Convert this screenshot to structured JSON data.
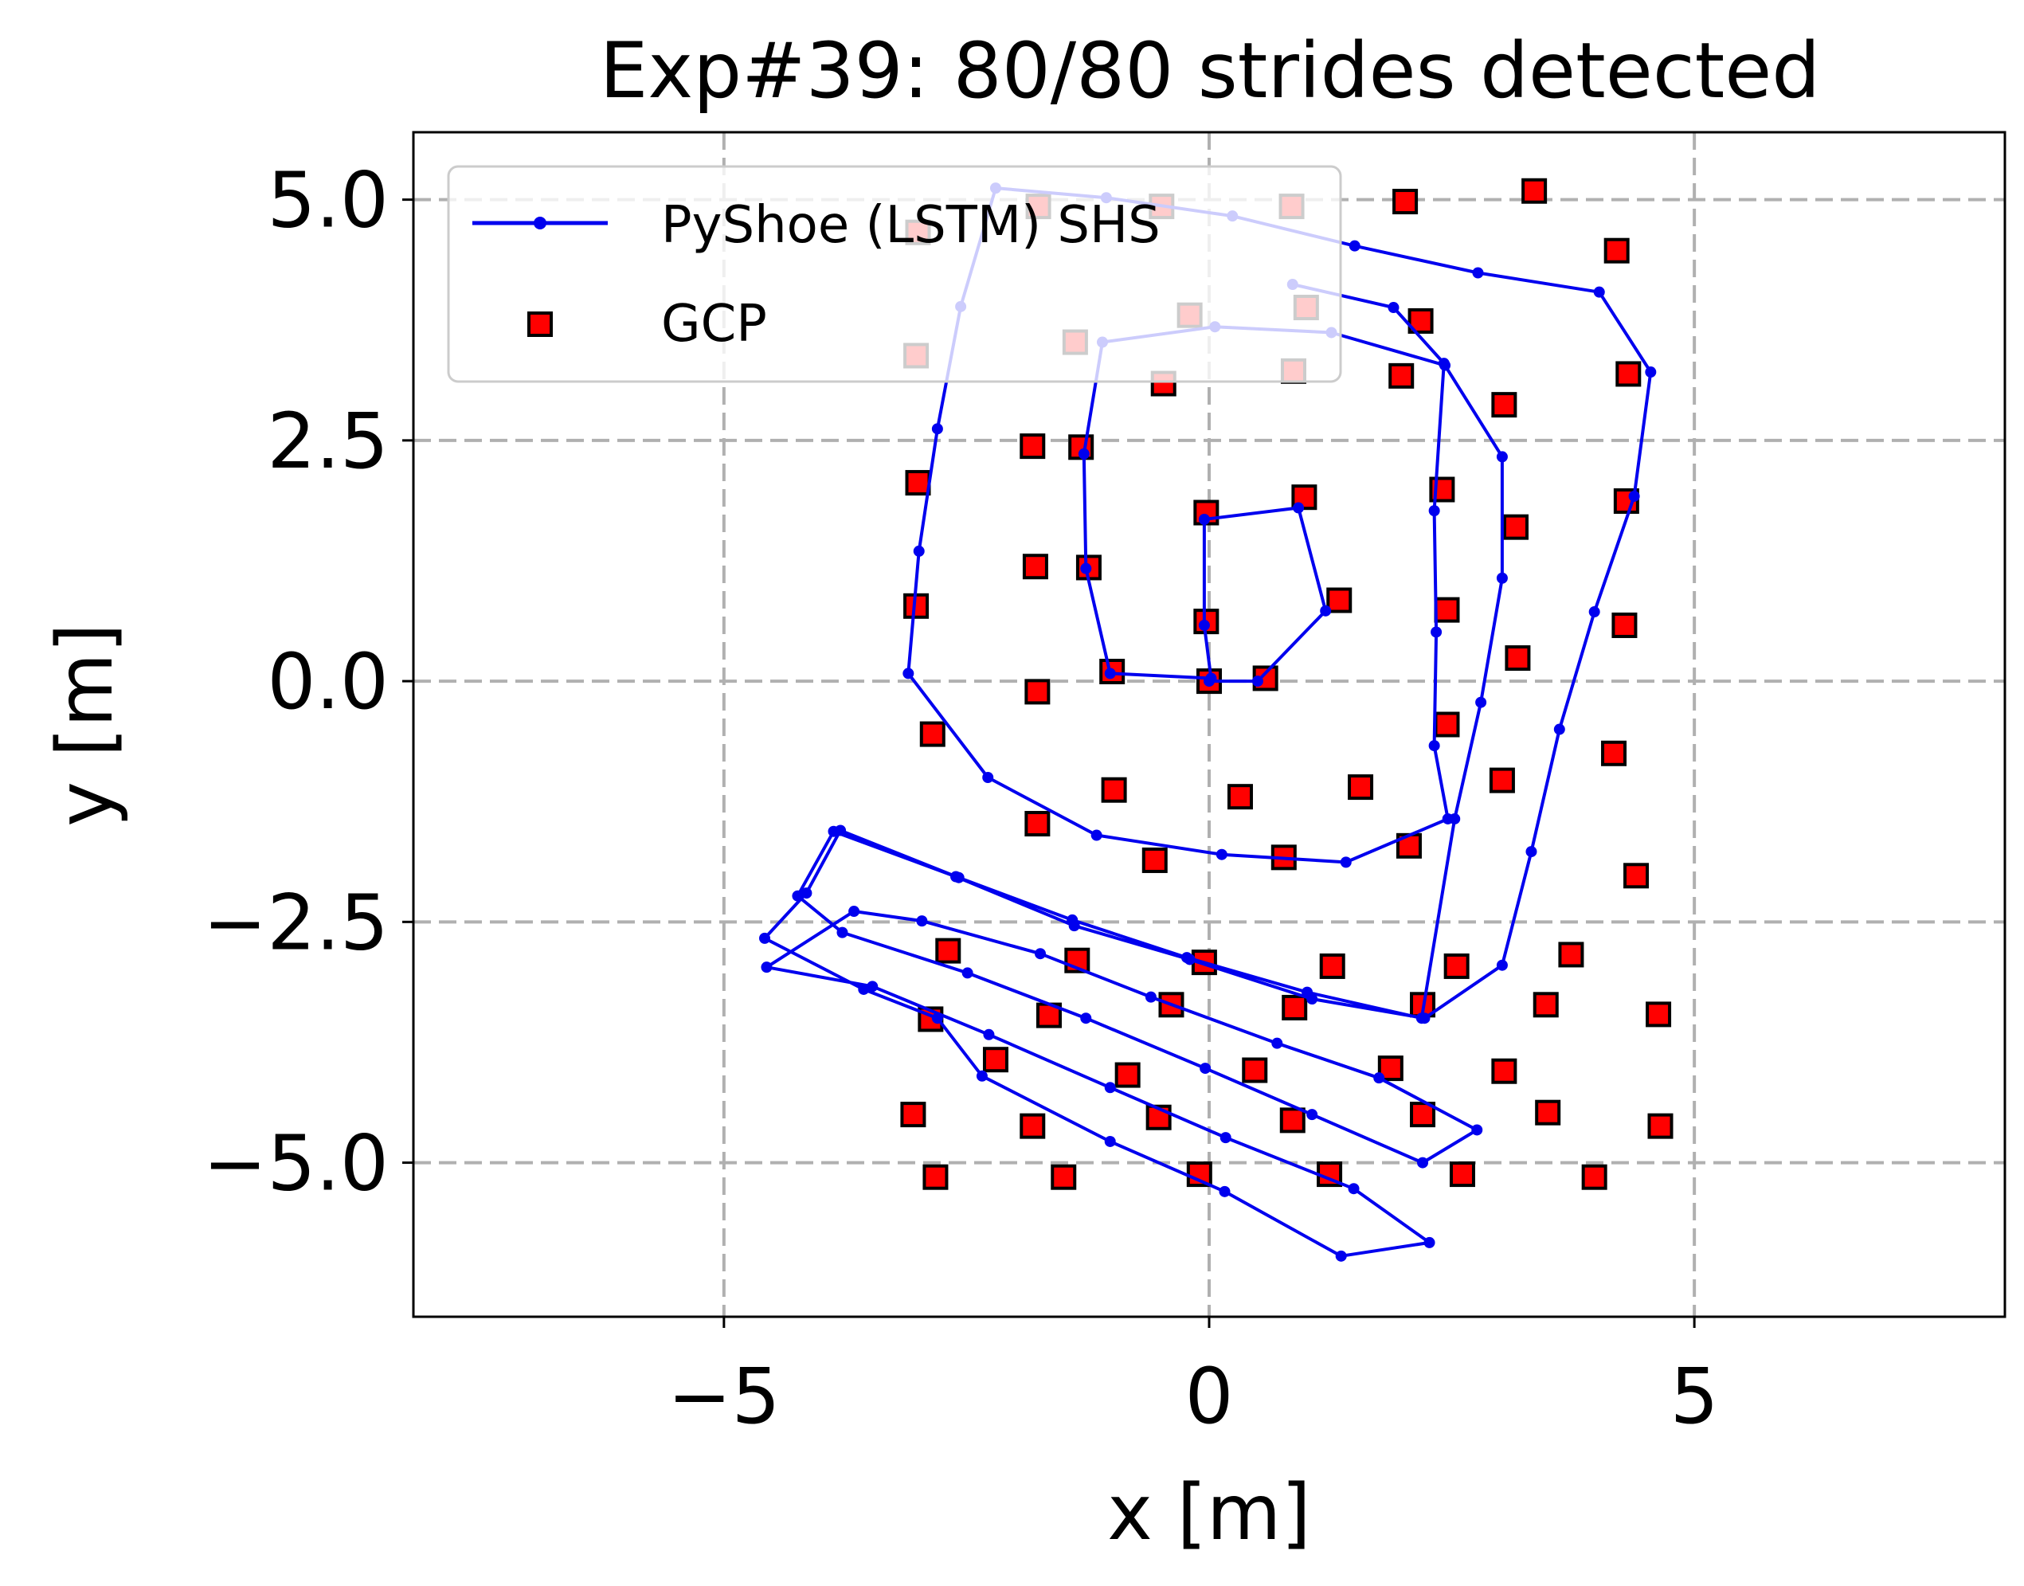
{
  "chart_data": {
    "type": "scatter",
    "title": "Exp#39: 80/80 strides detected",
    "xlabel": "x [m]",
    "ylabel": "y [m]",
    "xlim": [
      -8.2,
      8.2
    ],
    "ylim": [
      -6.6,
      5.7
    ],
    "xticks": [
      -5,
      0,
      5
    ],
    "xtick_labels": [
      "−5",
      "0",
      "5"
    ],
    "yticks": [
      5.0,
      2.5,
      0.0,
      -2.5,
      -5.0
    ],
    "ytick_labels": [
      "5.0",
      "2.5",
      "0.0",
      "−2.5",
      "−5.0"
    ],
    "grid": true,
    "legend_position": "top-left",
    "colors": {
      "trajectory": "#0000ee",
      "gcp_fill": "#ff0000",
      "gcp_edge": "#000000",
      "grid": "#b0b0b0"
    },
    "series": [
      {
        "name": "PyShoe (LSTM) SHS",
        "kind": "line-with-markers",
        "points": [
          [
            0.0,
            0.0
          ],
          [
            0.5,
            0.0
          ],
          [
            1.2,
            0.73
          ],
          [
            0.92,
            1.8
          ],
          [
            -0.05,
            1.68
          ],
          [
            -0.05,
            0.58
          ],
          [
            0.02,
            0.03
          ],
          [
            -1.02,
            0.08
          ],
          [
            -1.27,
            1.17
          ],
          [
            -1.29,
            2.36
          ],
          [
            -1.1,
            3.52
          ],
          [
            0.06,
            3.68
          ],
          [
            1.26,
            3.62
          ],
          [
            2.43,
            3.28
          ],
          [
            3.02,
            2.33
          ],
          [
            3.02,
            1.07
          ],
          [
            2.8,
            -0.22
          ],
          [
            2.53,
            -1.43
          ],
          [
            2.19,
            -3.5
          ],
          [
            1.01,
            -3.23
          ],
          [
            -0.23,
            -2.87
          ],
          [
            -1.41,
            -2.48
          ],
          [
            -2.58,
            -2.04
          ],
          [
            -3.8,
            -1.55
          ],
          [
            -4.15,
            -2.2
          ],
          [
            -4.58,
            -2.67
          ],
          [
            -3.56,
            -3.2
          ],
          [
            -2.8,
            -3.5
          ],
          [
            -2.34,
            -4.1
          ],
          [
            -1.02,
            -4.78
          ],
          [
            0.16,
            -5.3
          ],
          [
            1.36,
            -5.97
          ],
          [
            2.27,
            -5.83
          ],
          [
            1.49,
            -5.27
          ],
          [
            0.17,
            -4.74
          ],
          [
            -1.02,
            -4.22
          ],
          [
            -2.27,
            -3.67
          ],
          [
            -3.47,
            -3.17
          ],
          [
            -4.56,
            -2.97
          ],
          [
            -3.66,
            -2.39
          ],
          [
            -2.96,
            -2.49
          ],
          [
            -1.74,
            -2.83
          ],
          [
            -0.6,
            -3.28
          ],
          [
            0.7,
            -3.76
          ],
          [
            1.75,
            -4.12
          ],
          [
            2.76,
            -4.66
          ],
          [
            2.2,
            -5.0
          ],
          [
            1.06,
            -4.5
          ],
          [
            -0.04,
            -4.02
          ],
          [
            -1.27,
            -3.5
          ],
          [
            -2.49,
            -3.03
          ],
          [
            -3.78,
            -2.61
          ],
          [
            -4.24,
            -2.23
          ],
          [
            -3.87,
            -1.56
          ],
          [
            -2.61,
            -2.03
          ],
          [
            -1.39,
            -2.54
          ],
          [
            -0.2,
            -2.89
          ],
          [
            1.06,
            -3.3
          ],
          [
            2.22,
            -3.5
          ],
          [
            3.02,
            -2.95
          ],
          [
            3.32,
            -1.77
          ],
          [
            3.61,
            -0.5
          ],
          [
            3.97,
            0.72
          ],
          [
            4.38,
            1.92
          ],
          [
            4.55,
            3.21
          ],
          [
            4.02,
            4.04
          ],
          [
            2.77,
            4.24
          ],
          [
            1.5,
            4.52
          ],
          [
            0.24,
            4.83
          ],
          [
            -1.06,
            5.02
          ],
          [
            -2.2,
            5.12
          ],
          [
            -2.56,
            3.89
          ],
          [
            -2.8,
            2.62
          ],
          [
            -2.99,
            1.35
          ],
          [
            -3.1,
            0.08
          ],
          [
            -2.28,
            -1.0
          ],
          [
            -1.16,
            -1.6
          ],
          [
            0.13,
            -1.8
          ],
          [
            1.41,
            -1.88
          ],
          [
            2.46,
            -1.43
          ],
          [
            2.32,
            -0.67
          ],
          [
            2.34,
            0.51
          ],
          [
            2.32,
            1.77
          ],
          [
            2.42,
            3.3
          ],
          [
            1.9,
            3.88
          ],
          [
            0.86,
            4.12
          ]
        ]
      },
      {
        "name": "GCP",
        "kind": "square-markers",
        "points": [
          [
            0.0,
            0.0
          ],
          [
            0.58,
            0.03
          ],
          [
            1.34,
            0.84
          ],
          [
            0.98,
            1.91
          ],
          [
            -0.03,
            1.75
          ],
          [
            -0.03,
            0.62
          ],
          [
            -1.0,
            0.1
          ],
          [
            -1.24,
            1.18
          ],
          [
            -1.32,
            2.43
          ],
          [
            -1.38,
            3.52
          ],
          [
            -0.2,
            3.8
          ],
          [
            1.0,
            3.88
          ],
          [
            2.18,
            3.74
          ],
          [
            3.04,
            2.87
          ],
          [
            3.16,
            1.6
          ],
          [
            3.18,
            0.24
          ],
          [
            3.02,
            -1.03
          ],
          [
            2.2,
            -3.36
          ],
          [
            0.88,
            -3.39
          ],
          [
            -0.39,
            -3.36
          ],
          [
            -1.65,
            -3.47
          ],
          [
            -2.87,
            -3.51
          ],
          [
            -3.05,
            -4.5
          ],
          [
            -1.82,
            -4.62
          ],
          [
            -0.52,
            -4.53
          ],
          [
            0.86,
            -4.56
          ],
          [
            2.2,
            -4.5
          ],
          [
            3.49,
            -4.48
          ],
          [
            4.65,
            -4.62
          ],
          [
            4.63,
            -3.46
          ],
          [
            3.73,
            -2.84
          ],
          [
            3.47,
            -3.36
          ],
          [
            3.04,
            -4.05
          ],
          [
            1.87,
            -4.02
          ],
          [
            0.47,
            -4.04
          ],
          [
            -0.84,
            -4.09
          ],
          [
            -2.2,
            -3.93
          ],
          [
            -2.69,
            -2.8
          ],
          [
            -1.36,
            -2.9
          ],
          [
            -0.05,
            -2.92
          ],
          [
            1.27,
            -2.96
          ],
          [
            2.55,
            -2.96
          ],
          [
            4.17,
            -0.75
          ],
          [
            4.4,
            -2.02
          ],
          [
            4.28,
            0.58
          ],
          [
            4.3,
            1.87
          ],
          [
            4.32,
            3.19
          ],
          [
            4.2,
            4.47
          ],
          [
            3.35,
            5.09
          ],
          [
            2.02,
            4.98
          ],
          [
            0.85,
            4.93
          ],
          [
            -0.49,
            4.93
          ],
          [
            -1.76,
            4.93
          ],
          [
            -3.0,
            4.66
          ],
          [
            -3.02,
            3.38
          ],
          [
            -3.0,
            2.06
          ],
          [
            -3.02,
            0.78
          ],
          [
            -2.85,
            -0.55
          ],
          [
            -1.77,
            -1.48
          ],
          [
            -0.56,
            -1.86
          ],
          [
            0.77,
            -1.83
          ],
          [
            2.06,
            -1.71
          ],
          [
            2.45,
            -0.45
          ],
          [
            2.45,
            0.74
          ],
          [
            2.4,
            1.99
          ],
          [
            1.98,
            3.17
          ],
          [
            0.87,
            3.22
          ],
          [
            -0.47,
            3.09
          ],
          [
            -1.82,
            2.44
          ],
          [
            -1.79,
            1.19
          ],
          [
            -1.77,
            -0.11
          ],
          [
            -0.98,
            -1.13
          ],
          [
            0.32,
            -1.2
          ],
          [
            1.56,
            -1.1
          ],
          [
            -2.82,
            -5.15
          ],
          [
            -1.5,
            -5.15
          ],
          [
            -0.1,
            -5.12
          ],
          [
            1.24,
            -5.12
          ],
          [
            2.61,
            -5.12
          ],
          [
            3.97,
            -5.15
          ]
        ]
      }
    ]
  }
}
